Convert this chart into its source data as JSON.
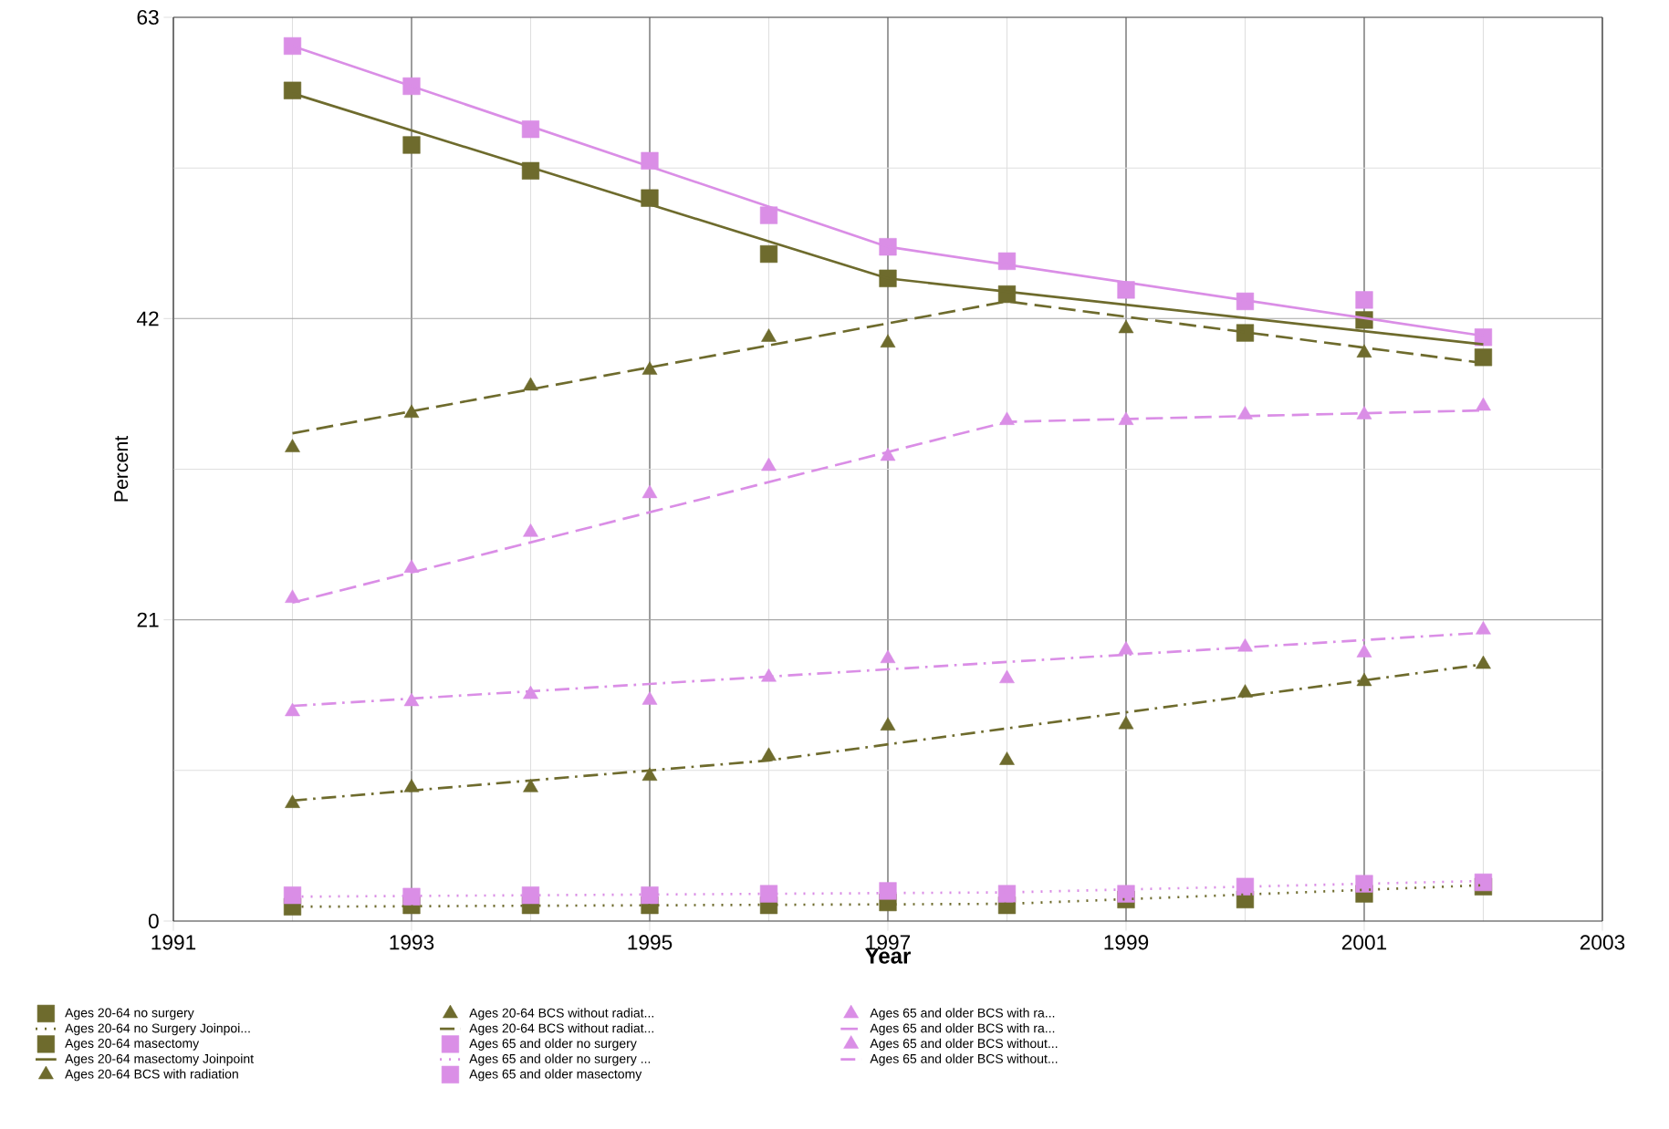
{
  "chart_data": {
    "type": "line",
    "xlabel": "Year",
    "ylabel": "Percent",
    "x": [
      1992,
      1993,
      1994,
      1995,
      1996,
      1997,
      1998,
      1999,
      2000,
      2001,
      2002
    ],
    "xlim": [
      1991,
      2003
    ],
    "xticks": [
      1991,
      1993,
      1995,
      1997,
      1999,
      2001,
      2003
    ],
    "ylim": [
      0,
      63
    ],
    "yticks": [
      0,
      21,
      42,
      63
    ],
    "grid": true,
    "legend": "bottom",
    "series": [
      {
        "name": "Ages 20-64 no surgery",
        "type": "scatter",
        "marker": "square",
        "color": "#6e6b2d",
        "values": [
          1.0,
          1.1,
          1.1,
          1.1,
          1.1,
          1.3,
          1.1,
          1.5,
          1.5,
          1.9,
          2.4
        ]
      },
      {
        "name": "Ages 20-64 no Surgery Joinpoi...",
        "line_style": "dotted",
        "color": "#6e6b2d",
        "x": [
          1992,
          1998,
          2002
        ],
        "values": [
          1.0,
          1.2,
          2.5
        ]
      },
      {
        "name": "Ages 20-64 masectomy",
        "type": "scatter",
        "marker": "square",
        "color": "#6e6b2d",
        "values": [
          57.9,
          54.1,
          52.3,
          50.4,
          46.5,
          44.8,
          43.7,
          null,
          41.0,
          41.9,
          39.3
        ]
      },
      {
        "name": "Ages 20-64 masectomy Joinpoint",
        "line_style": "solid",
        "color": "#6e6b2d",
        "x": [
          1992,
          1997,
          2002
        ],
        "values": [
          57.7,
          44.8,
          40.2
        ]
      },
      {
        "name": "Ages 20-64 BCS with radiation",
        "type": "scatter",
        "marker": "triangle",
        "color": "#6e6b2d",
        "values": [
          33.0,
          35.4,
          37.3,
          38.4,
          40.7,
          40.3,
          null,
          41.3,
          null,
          39.6,
          null
        ]
      },
      {
        "name": "Ages 20-64 BCS without radiat...",
        "type": "scatter",
        "marker": "triangle",
        "color": "#6e6b2d",
        "values": [
          8.2,
          9.3,
          9.3,
          10.1,
          11.5,
          13.6,
          11.2,
          13.7,
          15.9,
          16.7,
          17.9
        ]
      },
      {
        "name": "Ages 20-64 BCS without radiat...",
        "line_style": "dashdot",
        "color": "#6e6b2d",
        "x": [
          1992,
          1996,
          2002
        ],
        "values": [
          8.4,
          11.2,
          17.9
        ]
      },
      {
        "name": "Ages 65 and older no surgery",
        "type": "scatter",
        "marker": "square",
        "color": "#da8ee6",
        "values": [
          1.8,
          1.7,
          1.8,
          1.8,
          1.9,
          2.1,
          1.9,
          1.9,
          2.4,
          2.6,
          2.7
        ]
      },
      {
        "name": "Ages 65 and older no surgery ...",
        "line_style": "dotted",
        "color": "#da8ee6",
        "x": [
          1992,
          1998,
          2002
        ],
        "values": [
          1.7,
          2.0,
          2.8
        ]
      },
      {
        "name": "Ages 65 and older masectomy",
        "type": "scatter",
        "marker": "square",
        "color": "#da8ee6",
        "values": [
          61.0,
          58.2,
          55.2,
          53.0,
          49.2,
          47.0,
          46.0,
          44.0,
          43.2,
          43.3,
          40.7
        ]
      },
      {
        "name": "Ages 65 and older BCS with ra...",
        "type": "scatter",
        "marker": "triangle",
        "color": "#da8ee6",
        "values": [
          22.5,
          24.6,
          27.1,
          29.8,
          31.7,
          32.4,
          34.9,
          34.9,
          35.3,
          35.3,
          35.9
        ]
      },
      {
        "name": "Ages 65 and older BCS with ra...",
        "line_style": "dashed",
        "color": "#da8ee6",
        "x": [
          1992,
          1998,
          2002
        ],
        "values": [
          22.2,
          34.8,
          35.6
        ]
      },
      {
        "name": "Ages 65 and older BCS without...",
        "type": "scatter",
        "marker": "triangle",
        "color": "#da8ee6",
        "values": [
          14.6,
          15.3,
          15.8,
          15.4,
          17.0,
          18.3,
          16.9,
          18.9,
          19.1,
          18.7,
          20.3
        ]
      },
      {
        "name": "Ages 65 and older BCS without...",
        "line_style": "dashdot",
        "color": "#da8ee6",
        "x": [
          1992,
          2002
        ],
        "values": [
          15.0,
          20.1
        ]
      },
      {
        "line_style": "dashed",
        "color": "#6e6b2d",
        "x": [
          1992,
          1998,
          2002
        ],
        "values": [
          34.0,
          43.2,
          38.9
        ]
      },
      {
        "line_style": "solid",
        "color": "#da8ee6",
        "x": [
          1992,
          1997,
          2002
        ],
        "values": [
          61.0,
          47.0,
          40.8
        ]
      }
    ]
  }
}
